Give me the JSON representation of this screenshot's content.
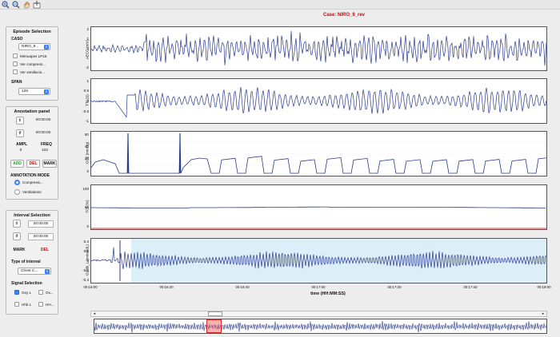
{
  "case_title": "Case: NIRO_9_rev",
  "toolbar": {
    "icons": [
      "zoom-in-icon",
      "zoom-out-icon",
      "pan-hand-icon",
      "data-cursor-icon"
    ]
  },
  "episode": {
    "title": "Episode Selection",
    "caso_label": "CASO",
    "caso_value": "NIRO_9...",
    "checks": [
      {
        "label": "Mėnuapes LP15",
        "checked": false
      },
      {
        "label": "Ver compress...",
        "checked": false
      },
      {
        "label": "Ver ventilacio...",
        "checked": false
      }
    ],
    "span_label": "SPAN",
    "span_value": "120"
  },
  "annotation": {
    "title": "Annotation panel",
    "ti_label": "ti",
    "ti_value": "00:00:00",
    "tf_label": "tf",
    "tf_value": "00:00:00",
    "ampl_label": "AMPL",
    "freq_label": "FREQ",
    "ampl_value": "0",
    "freq_value": "102",
    "add": "ADD",
    "del": "DEL",
    "mark": "MARK",
    "mode_label": "ANNOTATION MODE",
    "modes": [
      {
        "label": "Compressi...",
        "selected": true
      },
      {
        "label": "Ventilations",
        "selected": false
      }
    ]
  },
  "interval": {
    "title": "Interval Selection",
    "ti_label": "ti",
    "ti_value": "00:00:00",
    "tf_label": "tf",
    "tf_value": "00:00:00",
    "mark": "MARK",
    "del": "DEL",
    "type_label": "Type of interval",
    "type_value": "Chest C...",
    "signal_label": "Signal Selection",
    "signals": [
      {
        "label": "Oxy L",
        "checked": true
      },
      {
        "label": "Ox...",
        "checked": false
      },
      {
        "label": "Hhb L",
        "checked": false
      },
      {
        "label": "HH...",
        "checked": false
      }
    ]
  },
  "plots": [
    {
      "ylabel": "ECG (mV)",
      "yticks": [
        "2",
        "1",
        "0",
        "-1",
        "-2"
      ]
    },
    {
      "ylabel": "TTI (Ω)",
      "yticks": [
        "1",
        "0.5",
        "0",
        "-0.5",
        "-1"
      ]
    },
    {
      "ylabel": "CO2 (mmHg)",
      "yticks": [
        "60",
        "40",
        "20",
        "0"
      ]
    },
    {
      "ylabel": "TOI (%)",
      "yticks": [
        "100",
        "50",
        "0"
      ]
    },
    {
      "ylabel": "O2Hb_L (mmol/dL)",
      "yticks": [
        "0.4",
        "0.2",
        "0",
        "-0.2",
        "-0.4"
      ]
    }
  ],
  "xaxis": {
    "ticks": [
      "00:16:00",
      "00:16:20",
      "00:16:40",
      "00:17:00",
      "00:17:20",
      "00:17:40",
      "00:18:00"
    ],
    "label": "time (HH:MM:SS)"
  },
  "colors": {
    "signal": "#2b3a8f",
    "title": "#d40000",
    "highlight": "#dceef8",
    "toi_red": "#e03030",
    "button_blue": "#3b82f6"
  }
}
